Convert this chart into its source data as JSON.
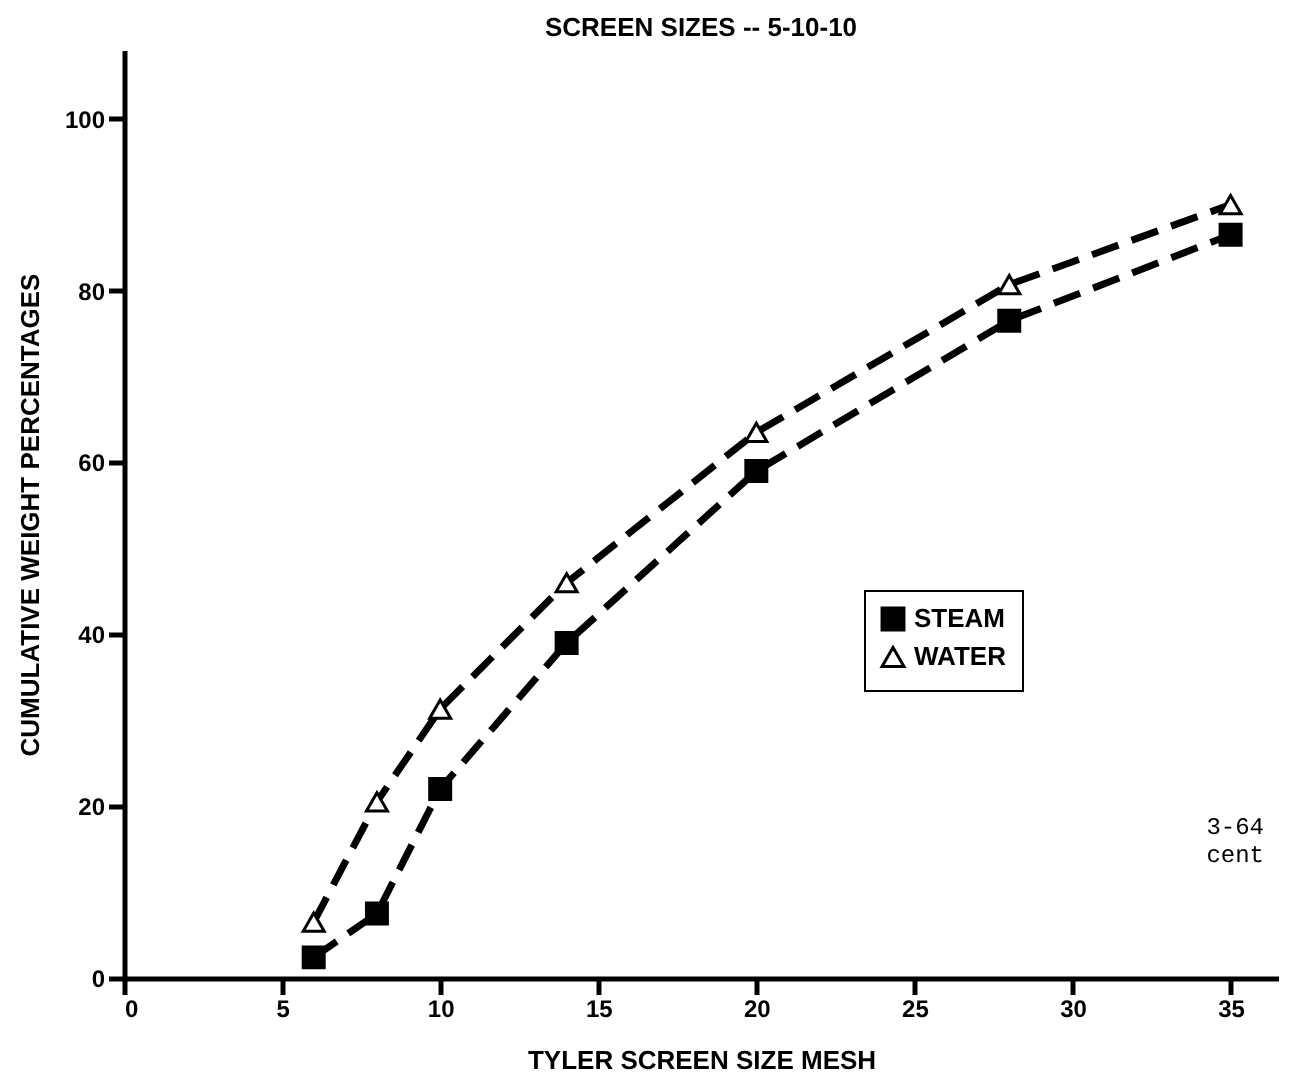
{
  "chart_data": {
    "type": "line",
    "title": "SCREEN SIZES -- 5-10-10",
    "xlabel": "TYLER SCREEN SIZE MESH",
    "ylabel": "CUMULATIVE WEIGHT PERCENTAGES",
    "x": [
      6,
      8,
      10,
      14,
      20,
      28,
      35
    ],
    "series": [
      {
        "name": "STEAM",
        "color": "#000000",
        "marker": "square",
        "values": [
          2.4,
          7.5,
          22,
          39,
          59,
          76.5,
          86.5
        ]
      },
      {
        "name": "WATER",
        "color": "#000000",
        "marker": "triangle",
        "values": [
          6.5,
          20.5,
          31.3,
          46,
          63.5,
          80.7,
          90
        ]
      }
    ],
    "xlim": [
      0,
      36.5
    ],
    "xticks": [
      0,
      5,
      10,
      15,
      20,
      25,
      30,
      35
    ],
    "ylim": [
      0,
      108
    ],
    "yticks": [
      0,
      20,
      40,
      60,
      80,
      100
    ],
    "line_style": "dashed",
    "grid": false,
    "legend": "right",
    "annotations": [
      "3-64 cent"
    ]
  }
}
